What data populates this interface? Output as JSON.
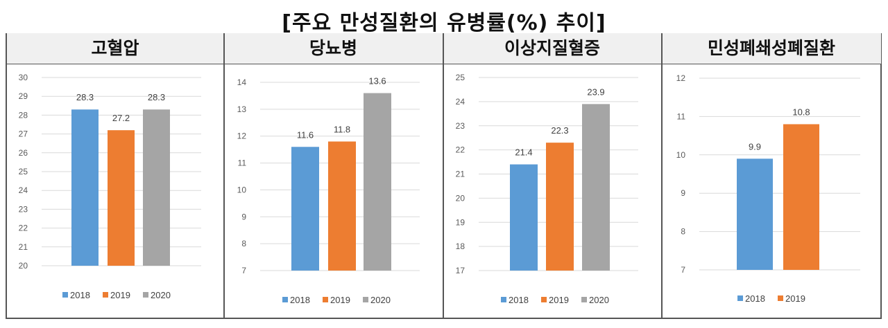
{
  "title": "[주요 만성질환의 유병률(%) 추이]",
  "colors": {
    "2018": "#5b9bd5",
    "2019": "#ed7d31",
    "2020": "#a5a5a5"
  },
  "chart_data": [
    {
      "type": "bar",
      "title": "고혈압",
      "categories": [
        "2018",
        "2019",
        "2020"
      ],
      "values": [
        28.3,
        27.2,
        28.3
      ],
      "ylim": [
        20,
        30
      ],
      "yticks": [
        20,
        21,
        22,
        23,
        24,
        25,
        26,
        27,
        28,
        29,
        30
      ],
      "grid": true,
      "legend": "bottom",
      "legend_entries": [
        "2018",
        "2019",
        "2020"
      ]
    },
    {
      "type": "bar",
      "title": "당뇨병",
      "categories": [
        "2018",
        "2019",
        "2020"
      ],
      "values": [
        11.6,
        11.8,
        13.6
      ],
      "ylim": [
        7,
        14
      ],
      "yticks": [
        7,
        8,
        9,
        10,
        11,
        12,
        13,
        14
      ],
      "grid": true,
      "legend": "bottom",
      "legend_entries": [
        "2018",
        "2019",
        "2020"
      ]
    },
    {
      "type": "bar",
      "title": "이상지질혈증",
      "categories": [
        "2018",
        "2019",
        "2020"
      ],
      "values": [
        21.4,
        22.3,
        23.9
      ],
      "ylim": [
        17,
        25
      ],
      "yticks": [
        17,
        18,
        19,
        20,
        21,
        22,
        23,
        24,
        25
      ],
      "grid": true,
      "legend": "bottom",
      "legend_entries": [
        "2018",
        "2019",
        "2020"
      ]
    },
    {
      "type": "bar",
      "title": "민성폐쇄성폐질환",
      "categories": [
        "2018",
        "2019"
      ],
      "values": [
        9.9,
        10.8
      ],
      "ylim": [
        7,
        12
      ],
      "yticks": [
        7,
        8,
        9,
        10,
        11,
        12
      ],
      "grid": true,
      "legend": "bottom",
      "legend_entries": [
        "2018",
        "2019"
      ]
    }
  ]
}
